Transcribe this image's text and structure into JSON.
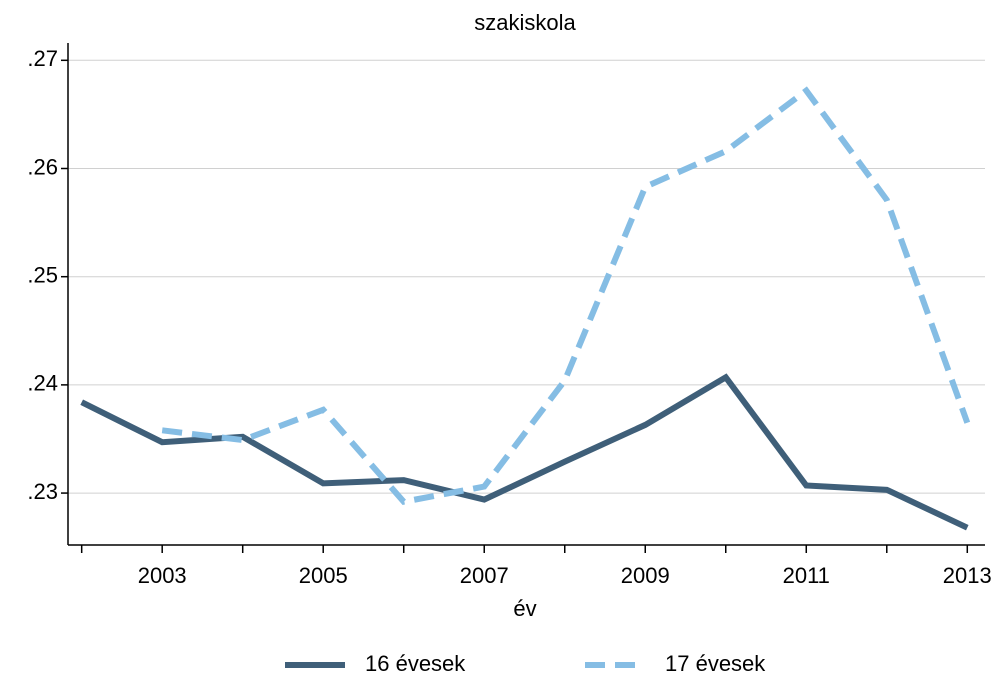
{
  "chart_data": {
    "type": "line",
    "title": "szakiskola",
    "x_label": "év",
    "x": [
      2002,
      2003,
      2004,
      2005,
      2006,
      2007,
      2008,
      2009,
      2010,
      2011,
      2012,
      2013
    ],
    "series": [
      {
        "name": "16 évesek",
        "color": "#3f5f79",
        "dash": "solid",
        "values": [
          0.2384,
          0.2347,
          0.2352,
          0.2309,
          0.2312,
          0.2294,
          0.2329,
          0.2363,
          0.2407,
          0.2307,
          0.2303,
          0.2268
        ]
      },
      {
        "name": "17 évesek",
        "color": "#85bde4",
        "dash": "dashed",
        "values": [
          null,
          0.2358,
          0.2349,
          0.2377,
          0.2292,
          0.2306,
          0.2404,
          0.2583,
          0.2616,
          0.2672,
          0.2571,
          0.2365
        ]
      }
    ],
    "xlim": [
      2001.83,
      2013.22
    ],
    "xticks": [
      2003,
      2005,
      2007,
      2009,
      2011,
      2013
    ],
    "xticks_minor": [
      2002,
      2004,
      2006,
      2008,
      2010,
      2012
    ],
    "ylim": [
      0.2252,
      0.2716
    ],
    "yticks": [
      {
        "value": 0.23,
        "label": ".23"
      },
      {
        "value": 0.24,
        "label": ".24"
      },
      {
        "value": 0.25,
        "label": ".25"
      },
      {
        "value": 0.26,
        "label": ".26"
      },
      {
        "value": 0.27,
        "label": ".27"
      }
    ],
    "grid": true,
    "legend": "bottom"
  }
}
